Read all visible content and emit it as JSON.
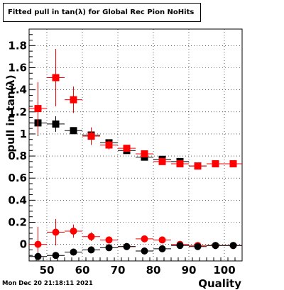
{
  "canvas": {
    "title": "Fitted pull in tan(λ) for Global Rec Pion NoHits",
    "datestamp": "Mon Dec 20 21:18:11 2021"
  },
  "chart_data": {
    "type": "scatter",
    "title": "Fitted pull in tan(λ) for Global Rec Pion NoHits",
    "xlabel": "Quality",
    "ylabel": "pull in tan(λ)",
    "xlim": [
      45,
      105
    ],
    "ylim": [
      -0.15,
      1.95
    ],
    "xticks": [
      50,
      60,
      70,
      80,
      90,
      100
    ],
    "xtick_labels": [
      "50",
      "60",
      "70",
      "80",
      "90",
      "100"
    ],
    "yticks": [
      0,
      0.2,
      0.4,
      0.6,
      0.8,
      1,
      1.2,
      1.4,
      1.6,
      1.8
    ],
    "ytick_labels": [
      "0",
      "0.2",
      "0.4",
      "0.6",
      "0.8",
      "1",
      "1.2",
      "1.4",
      "1.6",
      "1.8"
    ],
    "grid": true,
    "x_half_width": 2.5,
    "series": [
      {
        "marker": "square",
        "color": "#000000",
        "x": [
          47.5,
          52.5,
          57.5,
          62.5,
          67.5,
          72.5,
          77.5,
          82.5,
          87.5,
          92.5,
          97.5,
          102.5
        ],
        "y": [
          1.1,
          1.09,
          1.03,
          0.99,
          0.92,
          0.85,
          0.79,
          0.77,
          0.75,
          0.71,
          0.73,
          0.73
        ],
        "err": [
          0.12,
          0.07,
          0.03,
          0.02,
          0.015,
          0.015,
          0.015,
          0.01,
          0.01,
          0.01,
          0.01,
          0.01
        ]
      },
      {
        "marker": "square",
        "color": "#ff0000",
        "x": [
          47.5,
          52.5,
          57.5,
          62.5,
          67.5,
          72.5,
          77.5,
          82.5,
          87.5,
          92.5,
          97.5,
          102.5
        ],
        "y": [
          1.23,
          1.51,
          1.31,
          0.98,
          0.9,
          0.87,
          0.82,
          0.75,
          0.73,
          0.71,
          0.73,
          0.73
        ],
        "err": [
          0.24,
          0.26,
          0.12,
          0.08,
          0.04,
          0.03,
          0.02,
          0.02,
          0.015,
          0.015,
          0.015,
          0.015
        ]
      },
      {
        "marker": "circle",
        "color": "#ff0000",
        "x": [
          47.5,
          52.5,
          57.5,
          62.5,
          67.5,
          72.5,
          77.5,
          82.5,
          87.5,
          92.5,
          97.5,
          102.5
        ],
        "y": [
          0.0,
          0.11,
          0.12,
          0.07,
          0.04,
          -0.02,
          0.05,
          0.04,
          0.0,
          -0.01,
          -0.01,
          -0.01
        ],
        "err": [
          0.16,
          0.12,
          0.06,
          0.04,
          0.03,
          0.02,
          0.03,
          0.02,
          0.02,
          0.015,
          0.015,
          0.015
        ]
      },
      {
        "marker": "circle",
        "color": "#000000",
        "x": [
          47.5,
          52.5,
          57.5,
          62.5,
          67.5,
          72.5,
          77.5,
          82.5,
          87.5,
          92.5,
          97.5,
          102.5
        ],
        "y": [
          -0.11,
          -0.1,
          -0.07,
          -0.05,
          -0.03,
          -0.02,
          -0.06,
          -0.04,
          -0.01,
          -0.02,
          -0.01,
          -0.01
        ],
        "err": [
          0.04,
          0.03,
          0.03,
          0.02,
          0.02,
          0.02,
          0.02,
          0.02,
          0.02,
          0.01,
          0.01,
          0.01
        ]
      }
    ]
  }
}
